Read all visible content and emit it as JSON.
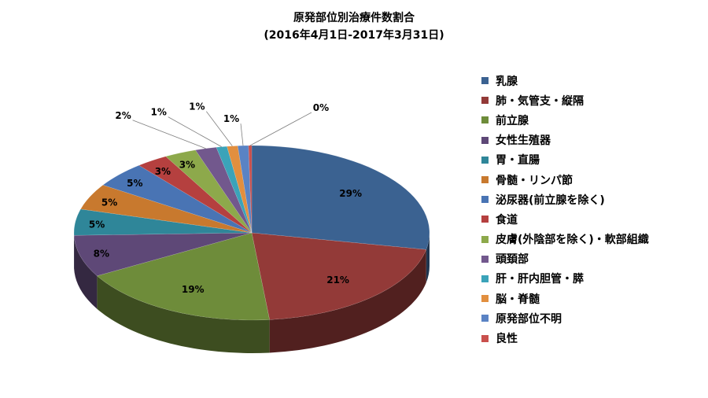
{
  "chart_data": {
    "type": "pie",
    "title": "原発部位別治療件数割合",
    "subtitle": "(2016年4月1日-2017年3月31日)",
    "categories": [
      "乳腺",
      "肺・気管支・縦隔",
      "前立腺",
      "女性生殖器",
      "胃・直腸",
      "骨髄・リンパ節",
      "泌尿器(前立腺を除く)",
      "食道",
      "皮膚(外陰部を除く)・軟部組織",
      "頭頚部",
      "肝・肝内胆管・膵",
      "脳・脊髄",
      "原発部位不明",
      "良性"
    ],
    "values": [
      29,
      21,
      19,
      8,
      5,
      5,
      5,
      3,
      3,
      2,
      1,
      1,
      1,
      0.3
    ],
    "data_labels": [
      "29%",
      "21%",
      "19%",
      "8%",
      "5%",
      "5%",
      "5%",
      "3%",
      "3%",
      "2%",
      "1%",
      "1%",
      "1%",
      "0%"
    ],
    "colors": [
      "#3B6291",
      "#933A38",
      "#6E8C3A",
      "#5E4877",
      "#2F8699",
      "#C8792E",
      "#4974B4",
      "#B5403F",
      "#8DA94B",
      "#72588D",
      "#3BA3B9",
      "#E28F3F",
      "#5A83C4",
      "#C9504D"
    ],
    "legend_position": "right"
  }
}
